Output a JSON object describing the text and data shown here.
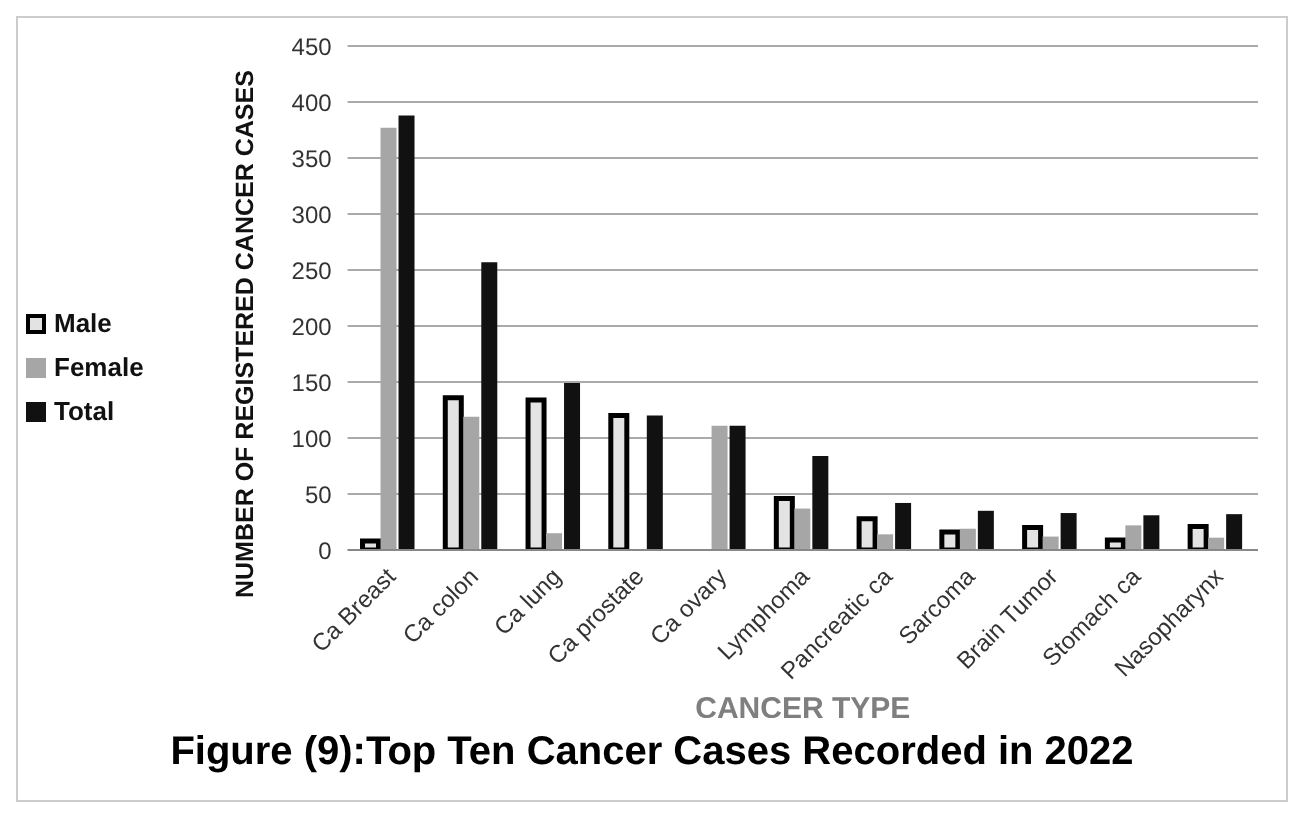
{
  "chart_data": {
    "type": "bar",
    "title": "Figure (9):Top Ten Cancer Cases Recorded in 2022",
    "xlabel": "CANCER TYPE",
    "ylabel": "NUMBER OF REGISTERED CANCER CASES",
    "categories": [
      "Ca Breast",
      "Ca colon",
      "Ca lung",
      "Ca prostate",
      "Ca ovary",
      "Lymphoma",
      "Pancreatic ca",
      "Sarcoma",
      "Brain Tumor",
      "Stomach ca",
      "Nasopharynx"
    ],
    "series": [
      {
        "name": "Male",
        "color": "#e3e3e3",
        "values": [
          8,
          136,
          134,
          120,
          0,
          46,
          28,
          16,
          20,
          9,
          21
        ]
      },
      {
        "name": "Female",
        "color": "#a6a6a6",
        "values": [
          377,
          119,
          15,
          0,
          111,
          37,
          14,
          19,
          12,
          22,
          11
        ]
      },
      {
        "name": "Total",
        "color": "#111111",
        "values": [
          388,
          257,
          149,
          120,
          111,
          84,
          42,
          35,
          33,
          31,
          32
        ]
      }
    ],
    "ylim": [
      0,
      450
    ],
    "yticks": [
      0,
      50,
      100,
      150,
      200,
      250,
      300,
      350,
      400,
      450
    ],
    "grid": "y",
    "legend": "left"
  }
}
